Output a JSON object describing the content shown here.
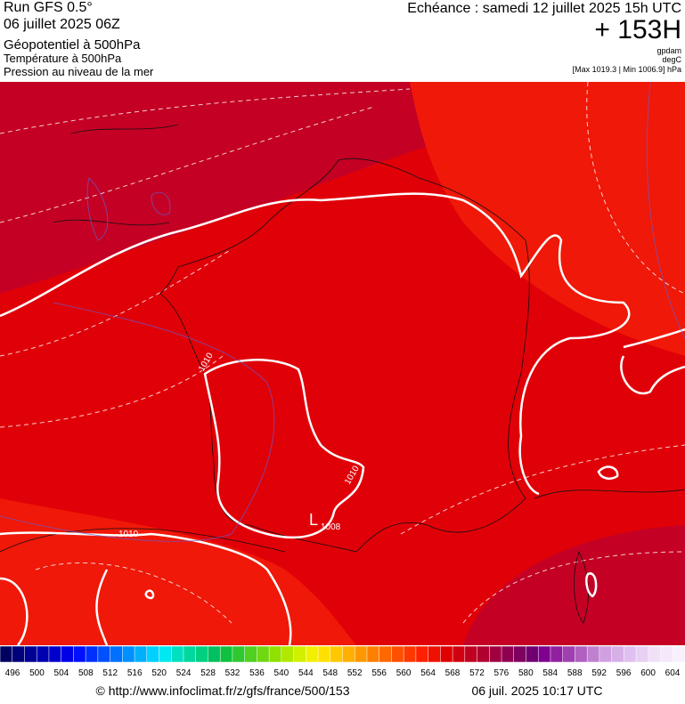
{
  "header": {
    "run": "Run GFS 0.5°",
    "run_date": "06 juillet 2025 06Z",
    "field_1": "Géopotentiel à 500hPa",
    "field_2": "Température à 500hPa",
    "field_3": "Pression au niveau de la mer",
    "valid_time": "Echéance : samedi 12 juillet 2025 15h UTC",
    "lead": "+ 153H",
    "unit_1": "gpdam",
    "unit_2": "degC",
    "pressure_range": "[Max 1019.3 | Min 1006.9] hPa"
  },
  "map": {
    "labels": [
      {
        "text": "1010"
      },
      {
        "text": "1010"
      },
      {
        "text": "1010"
      },
      {
        "text": "1008"
      },
      {
        "text": "L"
      }
    ]
  },
  "colorbar": {
    "ticks": [
      496,
      500,
      504,
      508,
      512,
      516,
      520,
      524,
      528,
      532,
      536,
      540,
      544,
      548,
      552,
      556,
      560,
      564,
      568,
      572,
      576,
      580,
      584,
      588,
      592,
      596,
      600,
      604
    ],
    "colors": [
      "#000060",
      "#00007a",
      "#000094",
      "#0000b0",
      "#0000cc",
      "#0000e6",
      "#0010ff",
      "#0030ff",
      "#0050ff",
      "#0070ff",
      "#0090ff",
      "#00b0ff",
      "#00d0ff",
      "#00e8f0",
      "#00e0c0",
      "#00d8a0",
      "#00d080",
      "#00c060",
      "#10c040",
      "#30c830",
      "#50d020",
      "#70d810",
      "#90e000",
      "#b0e800",
      "#d0f000",
      "#f0f000",
      "#ffe000",
      "#ffc800",
      "#ffb000",
      "#ff9800",
      "#ff8000",
      "#ff6800",
      "#ff5000",
      "#ff3800",
      "#ff2000",
      "#f01000",
      "#e00000",
      "#d00010",
      "#c00020",
      "#b00030",
      "#a00040",
      "#900050",
      "#800060",
      "#700070",
      "#800090",
      "#9020a0",
      "#a040b0",
      "#b060c0",
      "#c080d0",
      "#d0a0e0",
      "#d8b0e8",
      "#e0c0f0",
      "#e8d0f4",
      "#f0e0f8",
      "#f4e8fa",
      "#f8f0fc"
    ]
  },
  "footer": {
    "url": "© http://www.infoclimat.fr/z/gfs/france/500/153",
    "generated": "06 juil. 2025 10:17 UTC"
  }
}
